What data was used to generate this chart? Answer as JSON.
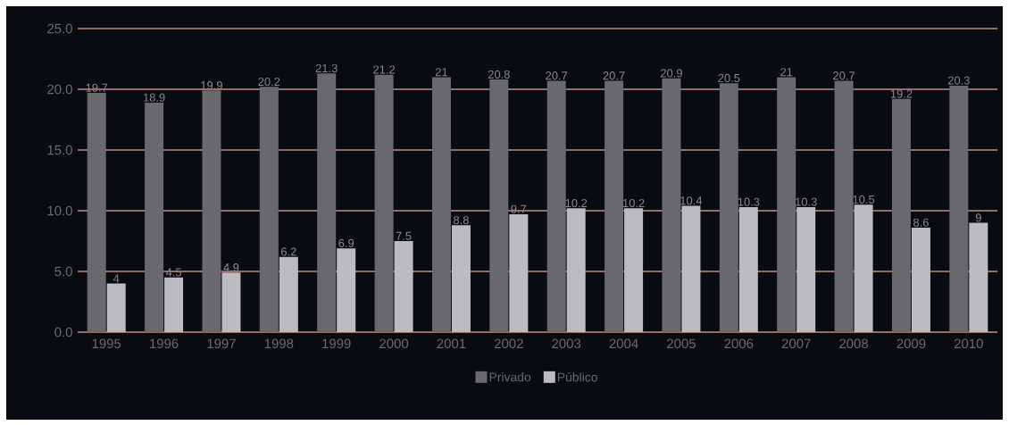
{
  "chart_data": {
    "type": "bar",
    "categories": [
      "1995",
      "1996",
      "1997",
      "1998",
      "1999",
      "2000",
      "2001",
      "2002",
      "2003",
      "2004",
      "2005",
      "2006",
      "2007",
      "2008",
      "2009",
      "2010"
    ],
    "series": [
      {
        "name": "Privado",
        "color": "#69686d",
        "values": [
          19.7,
          18.9,
          19.9,
          20.2,
          21.3,
          21.2,
          21,
          20.8,
          20.7,
          20.7,
          20.9,
          20.5,
          21,
          20.7,
          19.2,
          20.3
        ],
        "value_labels": [
          "19.7",
          "18.9",
          "19.9",
          "20.2",
          "21.3",
          "21.2",
          "21",
          "20.8",
          "20.7",
          "20.7",
          "20.9",
          "20.5",
          "21",
          "20.7",
          "19.2",
          "20.3"
        ]
      },
      {
        "name": "Público",
        "color": "#bcbbc0",
        "values": [
          4,
          4.5,
          4.9,
          6.2,
          6.9,
          7.5,
          8.8,
          9.7,
          10.2,
          10.2,
          10.4,
          10.3,
          10.3,
          10.5,
          8.6,
          9
        ],
        "value_labels": [
          "4",
          "4.5",
          "4.9",
          "6.2",
          "6.9",
          "7.5",
          "8.8",
          "9.7",
          "10.2",
          "10.2",
          "10.4",
          "10.3",
          "10.3",
          "10.5",
          "8.6",
          "9"
        ]
      }
    ],
    "ylim": [
      0,
      25
    ],
    "yticks": [
      {
        "value": 0,
        "label": "0.0"
      },
      {
        "value": 5,
        "label": "5.0"
      },
      {
        "value": 10,
        "label": "10.0"
      },
      {
        "value": 15,
        "label": "15.0"
      },
      {
        "value": 20,
        "label": "20.0"
      },
      {
        "value": 25,
        "label": "25.0"
      }
    ],
    "grid": "y",
    "legend": "bottom"
  }
}
